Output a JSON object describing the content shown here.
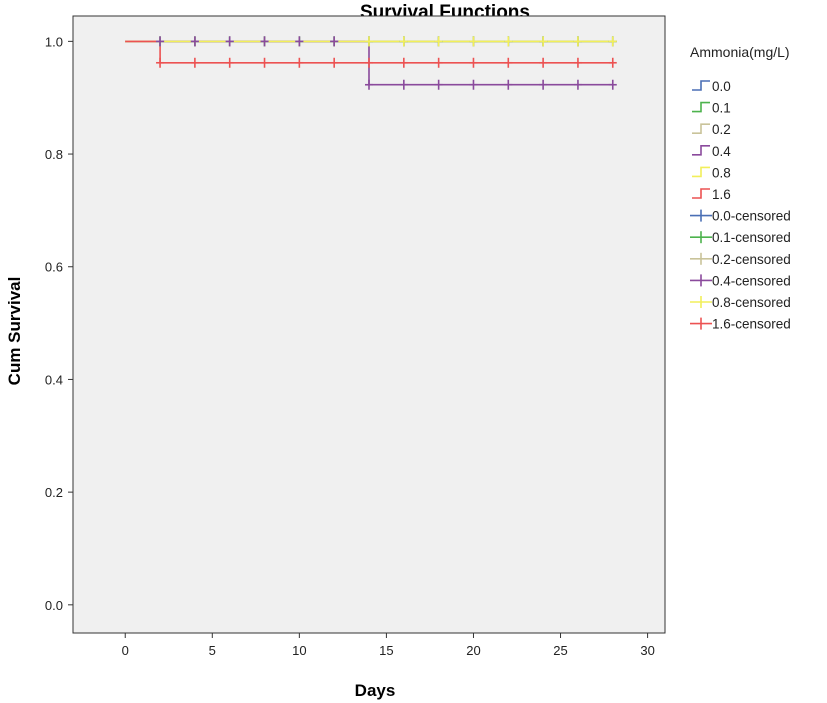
{
  "chart_data": {
    "type": "line",
    "title": "Survival Functions",
    "xlabel": "Days",
    "ylabel": "Cum Survival",
    "xlim": [
      -3,
      31
    ],
    "ylim": [
      -0.05,
      1.045
    ],
    "x_ticks": [
      0,
      5,
      10,
      15,
      20,
      25,
      30
    ],
    "y_ticks": [
      0.0,
      0.2,
      0.4,
      0.6,
      0.8,
      1.0
    ],
    "x_tick_labels": [
      "0",
      "5",
      "10",
      "15",
      "20",
      "25",
      "30"
    ],
    "y_tick_labels": [
      "0.0",
      "0.2",
      "0.4",
      "0.6",
      "0.8",
      "1.0"
    ],
    "background_color": "#f0f0f0",
    "grid": false,
    "legend_position": "right",
    "legend_title": "Ammonia(mg/L)",
    "series": [
      {
        "name": "0.0",
        "color": "#4a6fb5",
        "steps": [
          [
            0,
            1.0
          ],
          [
            28,
            1.0
          ]
        ],
        "censored": [
          [
            2,
            1.0
          ],
          [
            4,
            1.0
          ],
          [
            6,
            1.0
          ],
          [
            8,
            1.0
          ],
          [
            10,
            1.0
          ],
          [
            12,
            1.0
          ],
          [
            14,
            1.0
          ],
          [
            16,
            1.0
          ],
          [
            18,
            1.0
          ],
          [
            20,
            1.0
          ],
          [
            22,
            1.0
          ],
          [
            24,
            1.0
          ],
          [
            26,
            1.0
          ],
          [
            28,
            1.0
          ]
        ]
      },
      {
        "name": "0.1",
        "color": "#4db34d",
        "steps": [
          [
            0,
            1.0
          ],
          [
            28,
            1.0
          ]
        ],
        "censored": [
          [
            2,
            1.0
          ],
          [
            4,
            1.0
          ],
          [
            6,
            1.0
          ],
          [
            8,
            1.0
          ],
          [
            10,
            1.0
          ],
          [
            12,
            1.0
          ],
          [
            14,
            1.0
          ],
          [
            16,
            1.0
          ],
          [
            18,
            1.0
          ],
          [
            20,
            1.0
          ],
          [
            22,
            1.0
          ],
          [
            24,
            1.0
          ],
          [
            26,
            1.0
          ],
          [
            28,
            1.0
          ]
        ]
      },
      {
        "name": "0.2",
        "color": "#c9c39a",
        "steps": [
          [
            0,
            1.0
          ],
          [
            28,
            1.0
          ]
        ],
        "censored": [
          [
            2,
            1.0
          ],
          [
            4,
            1.0
          ],
          [
            6,
            1.0
          ],
          [
            8,
            1.0
          ],
          [
            10,
            1.0
          ],
          [
            12,
            1.0
          ],
          [
            14,
            1.0
          ],
          [
            16,
            1.0
          ],
          [
            18,
            1.0
          ],
          [
            20,
            1.0
          ],
          [
            22,
            1.0
          ],
          [
            24,
            1.0
          ],
          [
            26,
            1.0
          ],
          [
            28,
            1.0
          ]
        ]
      },
      {
        "name": "0.4",
        "color": "#8a4a9c",
        "steps": [
          [
            0,
            1.0
          ],
          [
            14,
            1.0
          ],
          [
            14,
            0.923
          ],
          [
            28,
            0.923
          ]
        ],
        "censored": [
          [
            2,
            1.0
          ],
          [
            4,
            1.0
          ],
          [
            6,
            1.0
          ],
          [
            8,
            1.0
          ],
          [
            10,
            1.0
          ],
          [
            12,
            1.0
          ],
          [
            14,
            0.923
          ],
          [
            16,
            0.923
          ],
          [
            18,
            0.923
          ],
          [
            20,
            0.923
          ],
          [
            22,
            0.923
          ],
          [
            24,
            0.923
          ],
          [
            26,
            0.923
          ],
          [
            28,
            0.923
          ]
        ]
      },
      {
        "name": "0.8",
        "color": "#f2ef5a",
        "steps": [
          [
            0,
            1.0
          ],
          [
            28,
            1.0
          ]
        ],
        "censored": [
          [
            14,
            1.0
          ],
          [
            16,
            1.0
          ],
          [
            18,
            1.0
          ],
          [
            20,
            1.0
          ],
          [
            22,
            1.0
          ],
          [
            24,
            1.0
          ],
          [
            26,
            1.0
          ],
          [
            28,
            1.0
          ]
        ]
      },
      {
        "name": "1.6",
        "color": "#ec5252",
        "steps": [
          [
            0,
            1.0
          ],
          [
            2,
            1.0
          ],
          [
            2,
            0.962
          ],
          [
            28,
            0.962
          ]
        ],
        "censored": [
          [
            2,
            0.962
          ],
          [
            4,
            0.962
          ],
          [
            6,
            0.962
          ],
          [
            8,
            0.962
          ],
          [
            10,
            0.962
          ],
          [
            12,
            0.962
          ],
          [
            14,
            0.962
          ],
          [
            16,
            0.962
          ],
          [
            18,
            0.962
          ],
          [
            20,
            0.962
          ],
          [
            22,
            0.962
          ],
          [
            24,
            0.962
          ],
          [
            26,
            0.962
          ],
          [
            28,
            0.962
          ]
        ]
      }
    ],
    "legend_entries": [
      {
        "label": "0.0",
        "kind": "step",
        "color": "#4a6fb5"
      },
      {
        "label": "0.1",
        "kind": "step",
        "color": "#4db34d"
      },
      {
        "label": "0.2",
        "kind": "step",
        "color": "#c9c39a"
      },
      {
        "label": "0.4",
        "kind": "step",
        "color": "#8a4a9c"
      },
      {
        "label": "0.8",
        "kind": "step",
        "color": "#f2ef5a"
      },
      {
        "label": "1.6",
        "kind": "step",
        "color": "#ec5252"
      },
      {
        "label": "0.0-censored",
        "kind": "censor",
        "color": "#4a6fb5"
      },
      {
        "label": "0.1-censored",
        "kind": "censor",
        "color": "#4db34d"
      },
      {
        "label": "0.2-censored",
        "kind": "censor",
        "color": "#c9c39a"
      },
      {
        "label": "0.4-censored",
        "kind": "censor",
        "color": "#8a4a9c"
      },
      {
        "label": "0.8-censored",
        "kind": "censor",
        "color": "#f2ef5a"
      },
      {
        "label": "1.6-censored",
        "kind": "censor",
        "color": "#ec5252"
      }
    ]
  }
}
